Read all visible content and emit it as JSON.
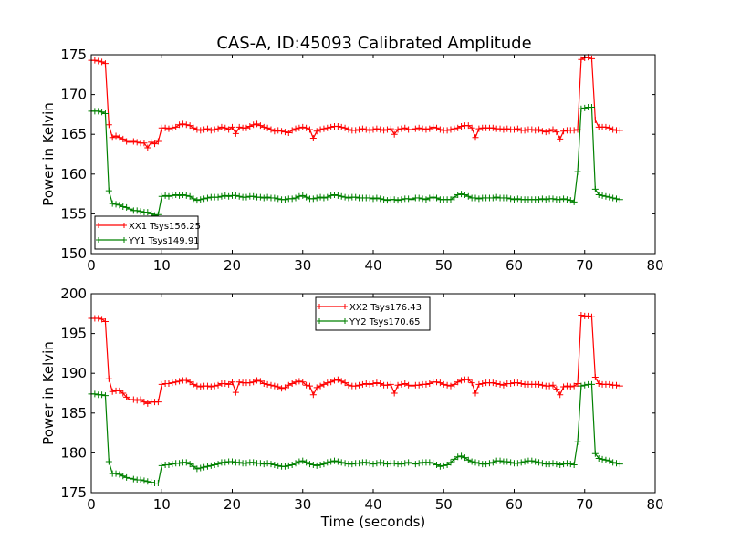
{
  "title": "CAS-A, ID:45093 Calibrated Amplitude",
  "chart_data": [
    {
      "type": "line",
      "ylabel": "Power in Kelvin",
      "xlabel": "",
      "xlim": [
        0,
        80
      ],
      "ylim": [
        150,
        175
      ],
      "xticks": [
        0,
        10,
        20,
        30,
        40,
        50,
        60,
        70,
        80
      ],
      "yticks": [
        150,
        155,
        160,
        165,
        170,
        175
      ],
      "legend_loc": "lower-left",
      "x": [
        0,
        0.5,
        1,
        1.5,
        2,
        2.5,
        3,
        3.5,
        4,
        4.5,
        5,
        5.5,
        6,
        6.5,
        7,
        7.5,
        8,
        8.5,
        9,
        9.5,
        10,
        10.5,
        11,
        11.5,
        12,
        12.5,
        13,
        13.5,
        14,
        14.5,
        15,
        15.5,
        16,
        16.5,
        17,
        17.5,
        18,
        18.5,
        19,
        19.5,
        20,
        20.5,
        21,
        21.5,
        22,
        22.5,
        23,
        23.5,
        24,
        24.5,
        25,
        25.5,
        26,
        26.5,
        27,
        27.5,
        28,
        28.5,
        29,
        29.5,
        30,
        30.5,
        31,
        31.5,
        32,
        32.5,
        33,
        33.5,
        34,
        34.5,
        35,
        35.5,
        36,
        36.5,
        37,
        37.5,
        38,
        38.5,
        39,
        39.5,
        40,
        40.5,
        41,
        41.5,
        42,
        42.5,
        43,
        43.5,
        44,
        44.5,
        45,
        45.5,
        46,
        46.5,
        47,
        47.5,
        48,
        48.5,
        49,
        49.5,
        50,
        50.5,
        51,
        51.5,
        52,
        52.5,
        53,
        53.5,
        54,
        54.5,
        55,
        55.5,
        56,
        56.5,
        57,
        57.5,
        58,
        58.5,
        59,
        59.5,
        60,
        60.5,
        61,
        61.5,
        62,
        62.5,
        63,
        63.5,
        64,
        64.5,
        65,
        65.5,
        66,
        66.5,
        67,
        67.5,
        68,
        68.5,
        69,
        69.5,
        70,
        70.5,
        71,
        71.5,
        72,
        72.5,
        73,
        73.5,
        74,
        74.5,
        75
      ],
      "series": [
        {
          "name": "XX1 Tsys156.25",
          "color": "#ff0000",
          "values": [
            174.3,
            174.3,
            174.2,
            174.1,
            173.9,
            166.2,
            164.6,
            164.8,
            164.6,
            164.4,
            164.1,
            164.0,
            164.1,
            164.0,
            163.9,
            163.9,
            163.3,
            164.0,
            163.8,
            164.1,
            165.8,
            165.8,
            165.7,
            165.8,
            165.9,
            166.2,
            166.3,
            166.2,
            166.1,
            165.8,
            165.6,
            165.5,
            165.6,
            165.7,
            165.5,
            165.6,
            165.7,
            165.9,
            165.8,
            165.6,
            165.9,
            165.1,
            165.9,
            165.8,
            165.8,
            166.0,
            166.2,
            166.3,
            166.1,
            165.9,
            165.8,
            165.6,
            165.4,
            165.5,
            165.4,
            165.3,
            165.2,
            165.5,
            165.7,
            165.8,
            165.9,
            165.8,
            165.6,
            164.5,
            165.4,
            165.6,
            165.7,
            165.8,
            165.9,
            166.0,
            166.0,
            165.9,
            165.8,
            165.6,
            165.5,
            165.5,
            165.6,
            165.7,
            165.6,
            165.5,
            165.6,
            165.7,
            165.6,
            165.5,
            165.6,
            165.7,
            165.0,
            165.6,
            165.7,
            165.8,
            165.6,
            165.6,
            165.7,
            165.8,
            165.7,
            165.6,
            165.7,
            165.9,
            165.8,
            165.6,
            165.5,
            165.5,
            165.6,
            165.7,
            165.8,
            166.0,
            166.1,
            166.1,
            165.8,
            164.6,
            165.7,
            165.8,
            165.8,
            165.8,
            165.8,
            165.7,
            165.7,
            165.6,
            165.7,
            165.6,
            165.6,
            165.7,
            165.5,
            165.5,
            165.6,
            165.6,
            165.5,
            165.6,
            165.4,
            165.3,
            165.4,
            165.6,
            165.3,
            164.4,
            165.4,
            165.5,
            165.5,
            165.5,
            165.6,
            174.4,
            174.6,
            174.7,
            174.5,
            166.8,
            165.9,
            165.9,
            165.9,
            165.8,
            165.6,
            165.5,
            165.5
          ]
        },
        {
          "name": "YY1 Tsys149.91",
          "color": "#008000",
          "values": [
            167.9,
            167.9,
            167.9,
            167.8,
            167.6,
            157.9,
            156.3,
            156.2,
            156.1,
            155.9,
            155.8,
            155.6,
            155.4,
            155.4,
            155.3,
            155.2,
            155.2,
            155.0,
            154.8,
            154.9,
            157.2,
            157.3,
            157.2,
            157.3,
            157.4,
            157.3,
            157.4,
            157.3,
            157.2,
            156.9,
            156.7,
            156.8,
            156.9,
            157.0,
            157.1,
            157.1,
            157.1,
            157.2,
            157.3,
            157.2,
            157.3,
            157.3,
            157.2,
            157.1,
            157.1,
            157.2,
            157.2,
            157.1,
            157.1,
            157.0,
            157.1,
            157.0,
            157.0,
            156.9,
            156.8,
            156.8,
            156.9,
            156.9,
            157.0,
            157.2,
            157.3,
            157.1,
            156.9,
            156.9,
            157.0,
            157.1,
            157.0,
            157.1,
            157.3,
            157.4,
            157.3,
            157.2,
            157.1,
            157.0,
            157.1,
            157.1,
            157.0,
            157.0,
            157.0,
            157.0,
            156.9,
            157.0,
            156.9,
            156.8,
            156.7,
            156.8,
            156.8,
            156.7,
            156.8,
            156.9,
            156.9,
            156.8,
            157.0,
            157.0,
            156.9,
            156.8,
            157.0,
            157.1,
            157.0,
            156.8,
            156.8,
            156.8,
            156.8,
            157.1,
            157.4,
            157.5,
            157.4,
            157.2,
            157.0,
            157.0,
            156.9,
            157.0,
            157.0,
            157.0,
            157.0,
            157.1,
            157.0,
            157.0,
            157.0,
            156.9,
            156.8,
            156.9,
            156.8,
            156.8,
            156.8,
            156.8,
            156.8,
            156.8,
            156.9,
            156.8,
            156.9,
            156.9,
            156.8,
            156.8,
            156.9,
            156.8,
            156.7,
            156.5,
            160.3,
            168.2,
            168.3,
            168.4,
            168.4,
            158.1,
            157.4,
            157.3,
            157.2,
            157.1,
            157.0,
            156.9,
            156.8
          ]
        }
      ]
    },
    {
      "type": "line",
      "ylabel": "Power in Kelvin",
      "xlabel": "Time (seconds)",
      "xlim": [
        0,
        80
      ],
      "ylim": [
        175,
        200
      ],
      "xticks": [
        0,
        10,
        20,
        30,
        40,
        50,
        60,
        70,
        80
      ],
      "yticks": [
        175,
        180,
        185,
        190,
        195,
        200
      ],
      "legend_loc": "upper-center",
      "x": [
        0,
        0.5,
        1,
        1.5,
        2,
        2.5,
        3,
        3.5,
        4,
        4.5,
        5,
        5.5,
        6,
        6.5,
        7,
        7.5,
        8,
        8.5,
        9,
        9.5,
        10,
        10.5,
        11,
        11.5,
        12,
        12.5,
        13,
        13.5,
        14,
        14.5,
        15,
        15.5,
        16,
        16.5,
        17,
        17.5,
        18,
        18.5,
        19,
        19.5,
        20,
        20.5,
        21,
        21.5,
        22,
        22.5,
        23,
        23.5,
        24,
        24.5,
        25,
        25.5,
        26,
        26.5,
        27,
        27.5,
        28,
        28.5,
        29,
        29.5,
        30,
        30.5,
        31,
        31.5,
        32,
        32.5,
        33,
        33.5,
        34,
        34.5,
        35,
        35.5,
        36,
        36.5,
        37,
        37.5,
        38,
        38.5,
        39,
        39.5,
        40,
        40.5,
        41,
        41.5,
        42,
        42.5,
        43,
        43.5,
        44,
        44.5,
        45,
        45.5,
        46,
        46.5,
        47,
        47.5,
        48,
        48.5,
        49,
        49.5,
        50,
        50.5,
        51,
        51.5,
        52,
        52.5,
        53,
        53.5,
        54,
        54.5,
        55,
        55.5,
        56,
        56.5,
        57,
        57.5,
        58,
        58.5,
        59,
        59.5,
        60,
        60.5,
        61,
        61.5,
        62,
        62.5,
        63,
        63.5,
        64,
        64.5,
        65,
        65.5,
        66,
        66.5,
        67,
        67.5,
        68,
        68.5,
        69,
        69.5,
        70,
        70.5,
        71,
        71.5,
        72,
        72.5,
        73,
        73.5,
        74,
        74.5,
        75
      ],
      "series": [
        {
          "name": "XX2 Tsys176.43",
          "color": "#ff0000",
          "values": [
            196.9,
            196.9,
            196.9,
            196.8,
            196.5,
            189.3,
            187.7,
            187.8,
            187.8,
            187.5,
            187.0,
            186.7,
            186.7,
            186.6,
            186.7,
            186.4,
            186.2,
            186.4,
            186.4,
            186.4,
            188.6,
            188.7,
            188.7,
            188.8,
            188.9,
            189.0,
            189.1,
            189.1,
            188.9,
            188.6,
            188.4,
            188.3,
            188.4,
            188.4,
            188.3,
            188.4,
            188.5,
            188.7,
            188.7,
            188.6,
            188.9,
            187.6,
            188.9,
            188.8,
            188.8,
            188.8,
            188.9,
            189.1,
            189.0,
            188.7,
            188.6,
            188.5,
            188.4,
            188.3,
            188.1,
            188.2,
            188.5,
            188.7,
            188.9,
            189.0,
            188.9,
            188.5,
            188.4,
            187.3,
            188.2,
            188.4,
            188.6,
            188.8,
            188.9,
            189.1,
            189.2,
            189.0,
            188.8,
            188.5,
            188.4,
            188.4,
            188.5,
            188.6,
            188.7,
            188.6,
            188.7,
            188.8,
            188.7,
            188.5,
            188.5,
            188.6,
            187.5,
            188.5,
            188.6,
            188.7,
            188.5,
            188.4,
            188.5,
            188.5,
            188.6,
            188.6,
            188.7,
            188.9,
            188.9,
            188.8,
            188.6,
            188.5,
            188.4,
            188.6,
            188.9,
            189.1,
            189.2,
            189.2,
            188.8,
            187.5,
            188.6,
            188.7,
            188.8,
            188.8,
            188.8,
            188.7,
            188.6,
            188.5,
            188.7,
            188.7,
            188.8,
            188.8,
            188.7,
            188.6,
            188.6,
            188.6,
            188.6,
            188.6,
            188.5,
            188.4,
            188.4,
            188.5,
            188.0,
            187.3,
            188.3,
            188.4,
            188.3,
            188.4,
            188.7,
            197.3,
            197.2,
            197.2,
            197.1,
            189.5,
            188.7,
            188.6,
            188.6,
            188.6,
            188.5,
            188.5,
            188.4
          ]
        },
        {
          "name": "YY2 Tsys170.65",
          "color": "#008000",
          "values": [
            187.4,
            187.4,
            187.3,
            187.3,
            187.2,
            178.9,
            177.4,
            177.4,
            177.3,
            177.1,
            176.9,
            176.8,
            176.7,
            176.6,
            176.6,
            176.5,
            176.4,
            176.3,
            176.2,
            176.2,
            178.4,
            178.5,
            178.5,
            178.6,
            178.7,
            178.7,
            178.8,
            178.8,
            178.6,
            178.3,
            178.0,
            178.1,
            178.2,
            178.3,
            178.4,
            178.5,
            178.6,
            178.8,
            178.8,
            178.9,
            178.9,
            178.8,
            178.8,
            178.7,
            178.7,
            178.8,
            178.8,
            178.7,
            178.7,
            178.6,
            178.7,
            178.6,
            178.5,
            178.4,
            178.3,
            178.3,
            178.4,
            178.5,
            178.7,
            178.9,
            179.0,
            178.8,
            178.6,
            178.5,
            178.4,
            178.5,
            178.6,
            178.8,
            178.9,
            179.0,
            178.9,
            178.8,
            178.7,
            178.6,
            178.6,
            178.7,
            178.7,
            178.8,
            178.8,
            178.7,
            178.6,
            178.7,
            178.8,
            178.7,
            178.6,
            178.7,
            178.7,
            178.6,
            178.6,
            178.7,
            178.8,
            178.7,
            178.6,
            178.7,
            178.8,
            178.8,
            178.8,
            178.7,
            178.5,
            178.3,
            178.4,
            178.5,
            178.8,
            179.2,
            179.5,
            179.6,
            179.4,
            179.1,
            178.9,
            178.8,
            178.7,
            178.6,
            178.6,
            178.7,
            178.8,
            179.0,
            179.0,
            178.9,
            178.9,
            178.8,
            178.7,
            178.7,
            178.8,
            178.9,
            179.0,
            179.0,
            178.9,
            178.8,
            178.7,
            178.6,
            178.6,
            178.7,
            178.6,
            178.5,
            178.6,
            178.7,
            178.6,
            178.5,
            181.4,
            188.4,
            188.5,
            188.6,
            188.6,
            179.9,
            179.3,
            179.2,
            179.1,
            179.0,
            178.8,
            178.7,
            178.6
          ]
        }
      ]
    }
  ]
}
